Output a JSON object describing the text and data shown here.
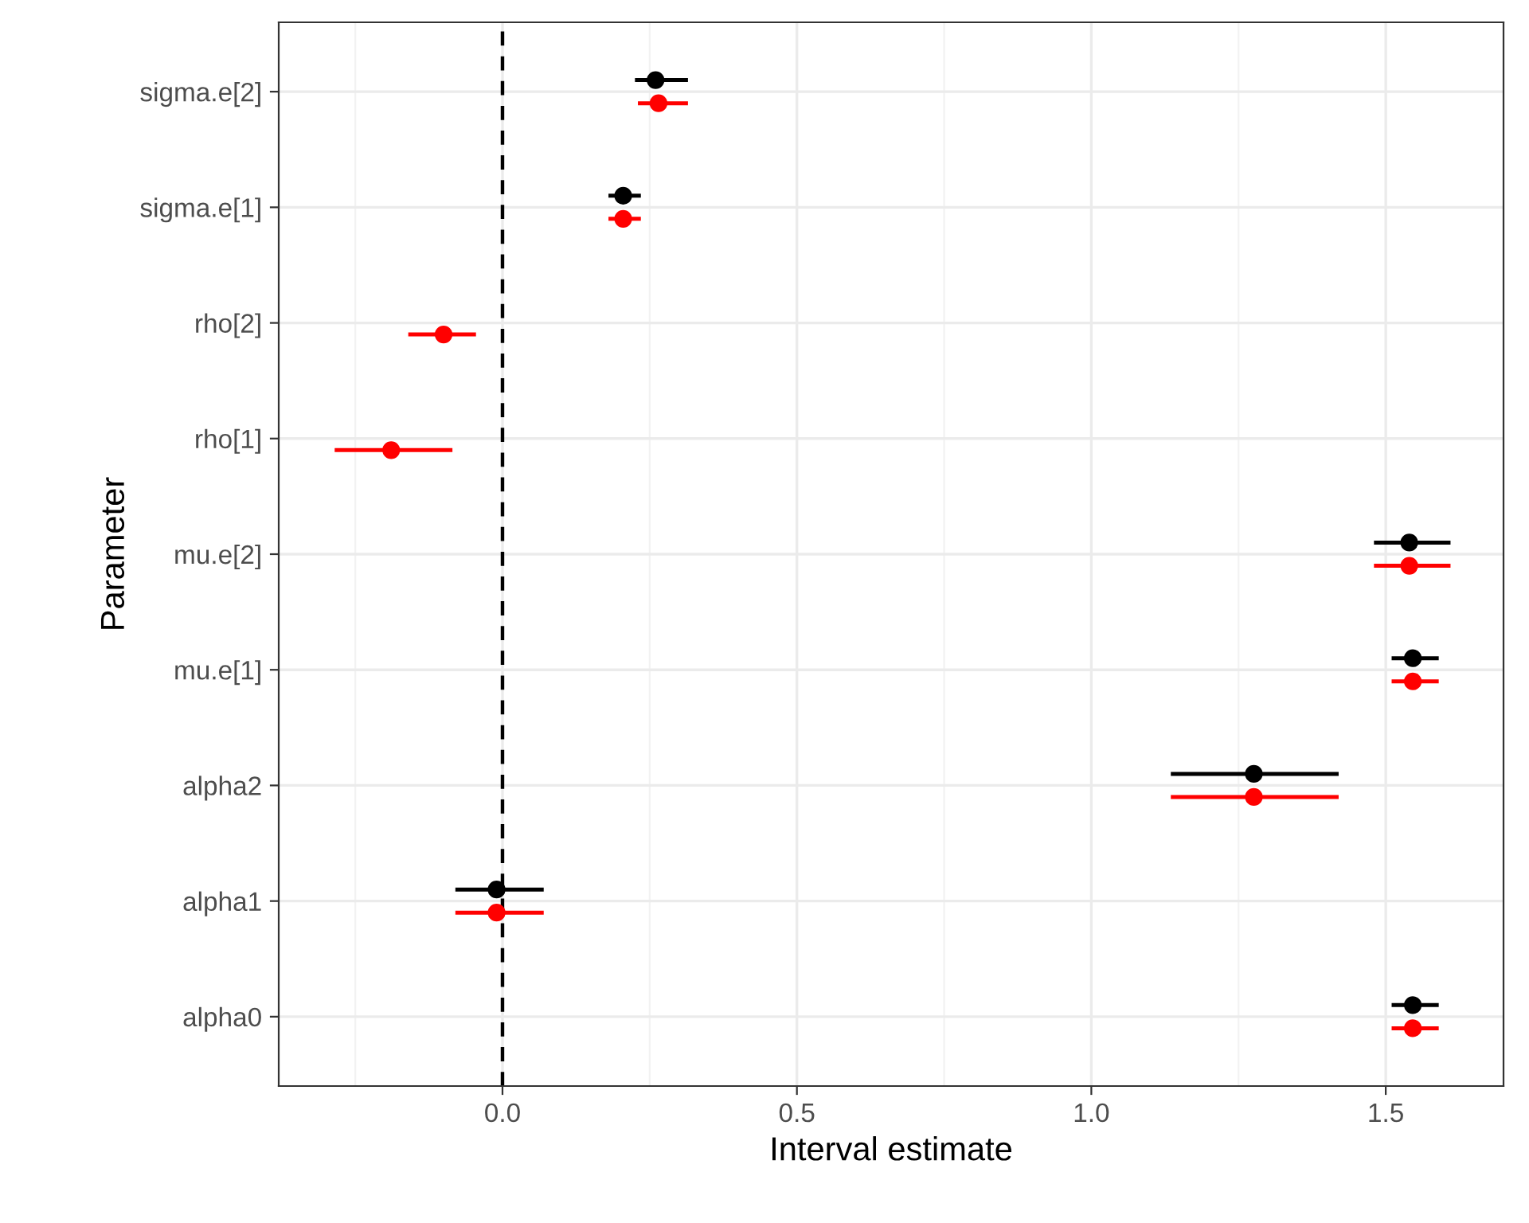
{
  "chart_data": {
    "type": "scatter",
    "orientation": "horizontal",
    "xlabel": "Interval estimate",
    "ylabel": "Parameter",
    "categories": [
      "sigma.e[2]",
      "sigma.e[1]",
      "rho[2]",
      "rho[1]",
      "mu.e[2]",
      "mu.e[1]",
      "alpha2",
      "alpha1",
      "alpha0"
    ],
    "series": [
      {
        "color": "#000000",
        "values": [
          0.26,
          0.205,
          null,
          null,
          1.54,
          1.546,
          1.276,
          -0.01,
          1.546
        ],
        "errors": [
          [
            0.225,
            0.315
          ],
          [
            0.18,
            0.235
          ],
          null,
          null,
          [
            1.48,
            1.61
          ],
          [
            1.51,
            1.59
          ],
          [
            1.135,
            1.42
          ],
          [
            -0.08,
            0.07
          ],
          [
            1.51,
            1.59
          ]
        ]
      },
      {
        "color": "#ff0000",
        "values": [
          0.265,
          0.205,
          -0.1,
          -0.189,
          1.54,
          1.546,
          1.276,
          -0.01,
          1.546
        ],
        "errors": [
          [
            0.23,
            0.315
          ],
          [
            0.18,
            0.235
          ],
          [
            -0.16,
            -0.045
          ],
          [
            -0.285,
            -0.085
          ],
          [
            1.48,
            1.61
          ],
          [
            1.51,
            1.59
          ],
          [
            1.135,
            1.42
          ],
          [
            -0.08,
            0.07
          ],
          [
            1.51,
            1.59
          ]
        ]
      }
    ],
    "xlim": [
      -0.38,
      1.7
    ],
    "xticks": [
      {
        "value": 0,
        "label": "0.0"
      },
      {
        "value": 0.5,
        "label": "0.5"
      },
      {
        "value": 1.0,
        "label": "1.0"
      },
      {
        "value": 1.5,
        "label": "1.5"
      }
    ],
    "ref_lines": [
      {
        "axis": "x",
        "value": 0,
        "color": "#000000",
        "line_style": "dashed"
      }
    ],
    "grid": true,
    "marker": "circle"
  }
}
